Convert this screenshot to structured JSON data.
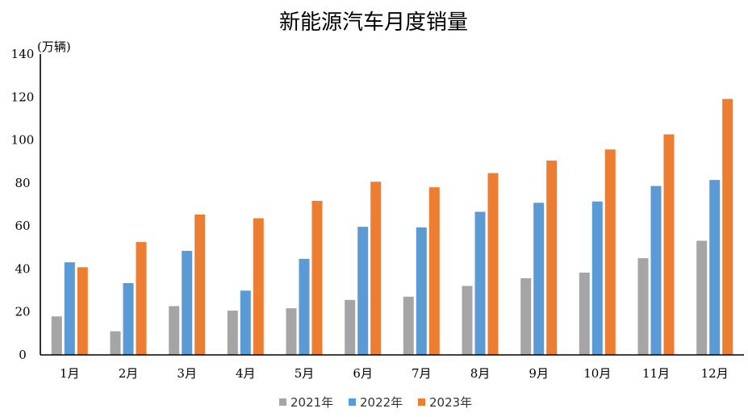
{
  "chart_data": {
    "type": "bar",
    "title": "新能源汽车月度销量",
    "ylabel": "(万辆)",
    "xlabel": "",
    "categories": [
      "1月",
      "2月",
      "3月",
      "4月",
      "5月",
      "6月",
      "7月",
      "8月",
      "9月",
      "10月",
      "11月",
      "12月"
    ],
    "series": [
      {
        "name": "2021年",
        "color": "#a5a5a5",
        "values": [
          17.9,
          11.0,
          22.7,
          20.6,
          21.7,
          25.6,
          27.1,
          32.1,
          35.7,
          38.3,
          45.0,
          53.1
        ]
      },
      {
        "name": "2022年",
        "color": "#5b9bd5",
        "values": [
          43.1,
          33.4,
          48.4,
          29.9,
          44.7,
          59.6,
          59.3,
          66.6,
          70.8,
          71.4,
          78.6,
          81.4
        ]
      },
      {
        "name": "2023年",
        "color": "#ed7d31",
        "values": [
          40.8,
          52.5,
          65.3,
          63.6,
          71.7,
          80.6,
          78.0,
          84.6,
          90.4,
          95.6,
          102.6,
          119.1
        ]
      }
    ],
    "yticks": [
      "0",
      "20",
      "40",
      "60",
      "80",
      "100",
      "120",
      "140"
    ],
    "ylim": [
      0,
      140
    ],
    "grid": false,
    "legend_position": "bottom"
  }
}
